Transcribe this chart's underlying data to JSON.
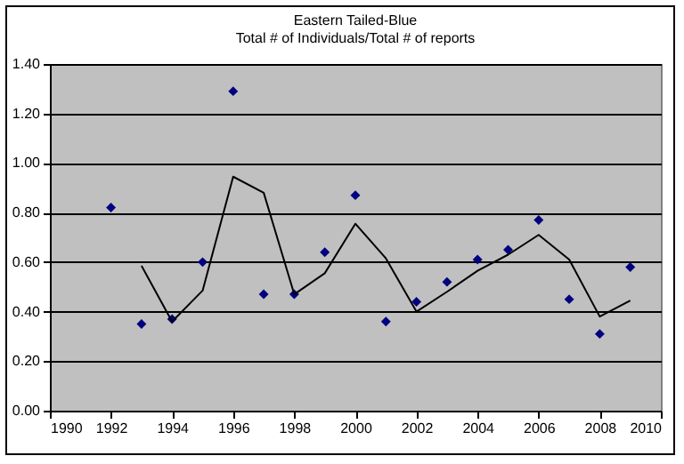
{
  "chart_data": {
    "type": "scatter",
    "title": "Eastern Tailed-Blue",
    "subtitle": "Total # of Individuals/Total # of reports",
    "xlim": [
      1990,
      2010
    ],
    "xticks": [
      1990,
      1992,
      1994,
      1996,
      1998,
      2000,
      2002,
      2004,
      2006,
      2008,
      2010
    ],
    "ylim": [
      0,
      1.4
    ],
    "yticks": [
      {
        "value": 0,
        "label": "0.00"
      },
      {
        "value": 0.2,
        "label": "0.20"
      },
      {
        "value": 0.4,
        "label": "0.40"
      },
      {
        "value": 0.6,
        "label": "0.60"
      },
      {
        "value": 0.8,
        "label": "0.80"
      },
      {
        "value": 1.0,
        "label": "1.00"
      },
      {
        "value": 1.2,
        "label": "1.20"
      },
      {
        "value": 1.4,
        "label": "1.40"
      }
    ],
    "grid": "y",
    "legend": false,
    "series": [
      {
        "type": "scatter",
        "marker": "diamond",
        "color": "#000080",
        "x": [
          1992,
          1993,
          1994,
          1995,
          1996,
          1997,
          1998,
          1999,
          2000,
          2001,
          2002,
          2003,
          2004,
          2005,
          2006,
          2007,
          2008,
          2009
        ],
        "values": [
          0.82,
          0.35,
          0.37,
          0.6,
          1.29,
          0.47,
          0.47,
          0.64,
          0.87,
          0.36,
          0.44,
          0.52,
          0.61,
          0.65,
          0.77,
          0.45,
          0.31,
          0.58
        ]
      },
      {
        "type": "line",
        "marker": "none",
        "line_style": "solid",
        "color": "#000000",
        "x": [
          1993,
          1994,
          1995,
          1996,
          1997,
          1998,
          1999,
          2000,
          2001,
          2002,
          2003,
          2004,
          2005,
          2006,
          2007,
          2008,
          2009
        ],
        "values": [
          0.585,
          0.36,
          0.485,
          0.945,
          0.88,
          0.47,
          0.555,
          0.755,
          0.615,
          0.4,
          0.48,
          0.565,
          0.63,
          0.71,
          0.61,
          0.38,
          0.445
        ]
      }
    ]
  }
}
